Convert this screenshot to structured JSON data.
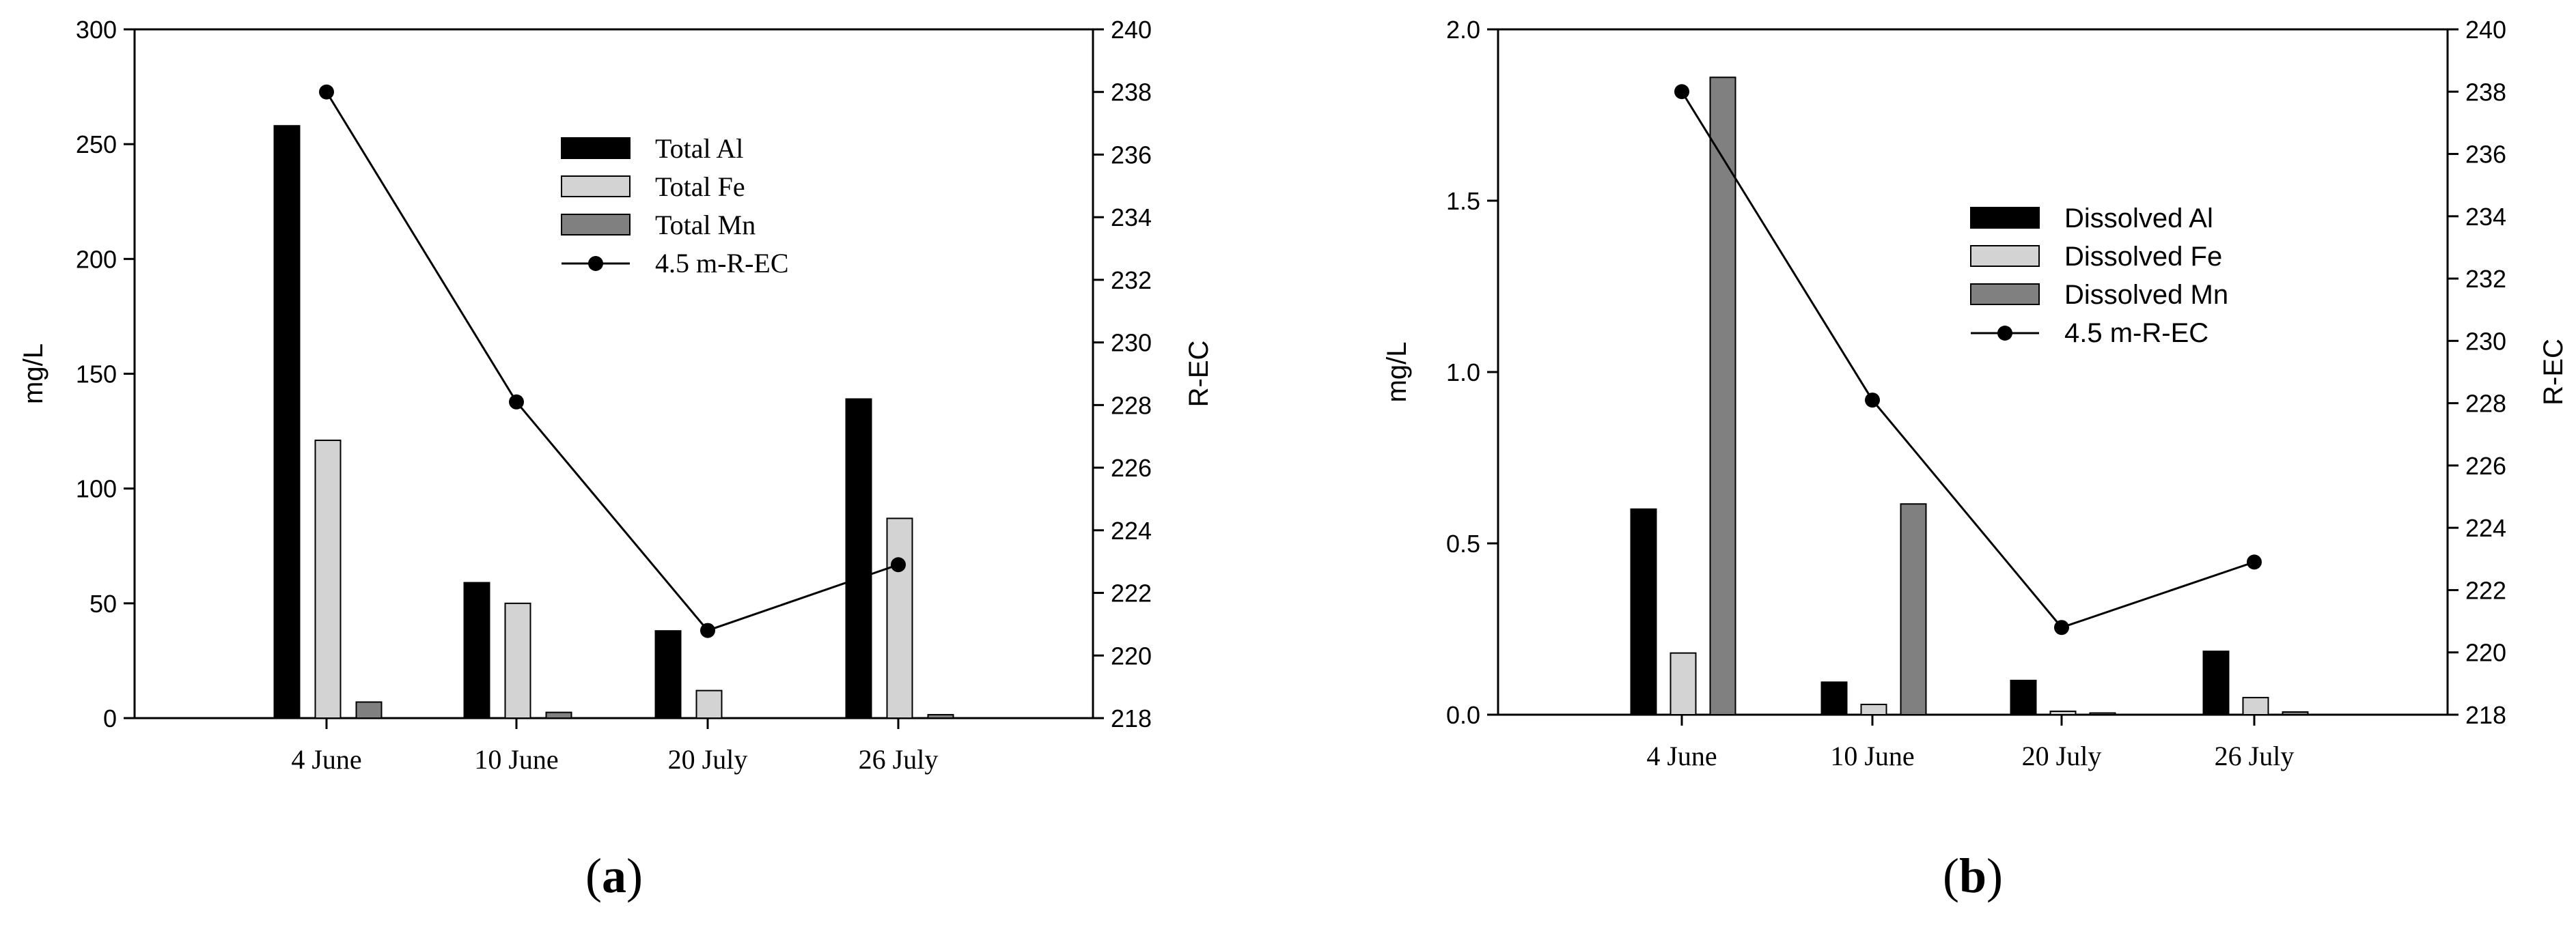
{
  "chart_data": [
    {
      "type": "bar",
      "panel_label": "a",
      "categories": [
        "4 June",
        "10 June",
        "20 July",
        "26 July"
      ],
      "ylabel": "mg/L",
      "y2label": "R-EC",
      "ylim": [
        0,
        300
      ],
      "yticks": [
        "0",
        "50",
        "100",
        "150",
        "200",
        "250",
        "300"
      ],
      "y2lim": [
        218,
        240
      ],
      "y2ticks": [
        "218",
        "220",
        "222",
        "224",
        "226",
        "228",
        "230",
        "232",
        "234",
        "236",
        "238",
        "240"
      ],
      "legend_position": "upper-center",
      "series": [
        {
          "name": "Total Al",
          "kind": "bar",
          "axis": "left",
          "color": "#000000",
          "values": [
            258,
            59,
            38,
            139
          ]
        },
        {
          "name": "Total Fe",
          "kind": "bar",
          "axis": "left",
          "color": "#d3d3d3",
          "values": [
            121,
            50,
            12,
            87
          ]
        },
        {
          "name": "Total Mn",
          "kind": "bar",
          "axis": "left",
          "color": "#808080",
          "values": [
            7,
            2.5,
            0,
            1.5
          ]
        },
        {
          "name": "4.5 m-R-EC",
          "kind": "line",
          "axis": "right",
          "color": "#000000",
          "values": [
            238,
            228.1,
            220.8,
            222.9
          ]
        }
      ]
    },
    {
      "type": "bar",
      "panel_label": "b",
      "categories": [
        "4 June",
        "10 June",
        "20 July",
        "26 July"
      ],
      "ylabel": "mg/L",
      "y2label": "R-EC",
      "ylim": [
        0,
        2.0
      ],
      "yticks": [
        "0.0",
        "0.5",
        "1.0",
        "1.5",
        "2.0"
      ],
      "y2lim": [
        218,
        240
      ],
      "y2ticks": [
        "218",
        "220",
        "222",
        "224",
        "226",
        "228",
        "230",
        "232",
        "234",
        "236",
        "238",
        "240"
      ],
      "legend_position": "center",
      "series": [
        {
          "name": "Dissolved Al",
          "kind": "bar",
          "axis": "left",
          "color": "#000000",
          "values": [
            0.6,
            0.095,
            0.1,
            0.185
          ]
        },
        {
          "name": "Dissolved Fe",
          "kind": "bar",
          "axis": "left",
          "color": "#d3d3d3",
          "values": [
            0.18,
            0.03,
            0.01,
            0.05
          ]
        },
        {
          "name": "Dissolved Mn",
          "kind": "bar",
          "axis": "left",
          "color": "#808080",
          "values": [
            1.86,
            0.615,
            0.005,
            0.008
          ]
        },
        {
          "name": "4.5 m-R-EC",
          "kind": "line",
          "axis": "right",
          "color": "#000000",
          "values": [
            238,
            228.1,
            220.8,
            222.9
          ]
        }
      ]
    }
  ]
}
